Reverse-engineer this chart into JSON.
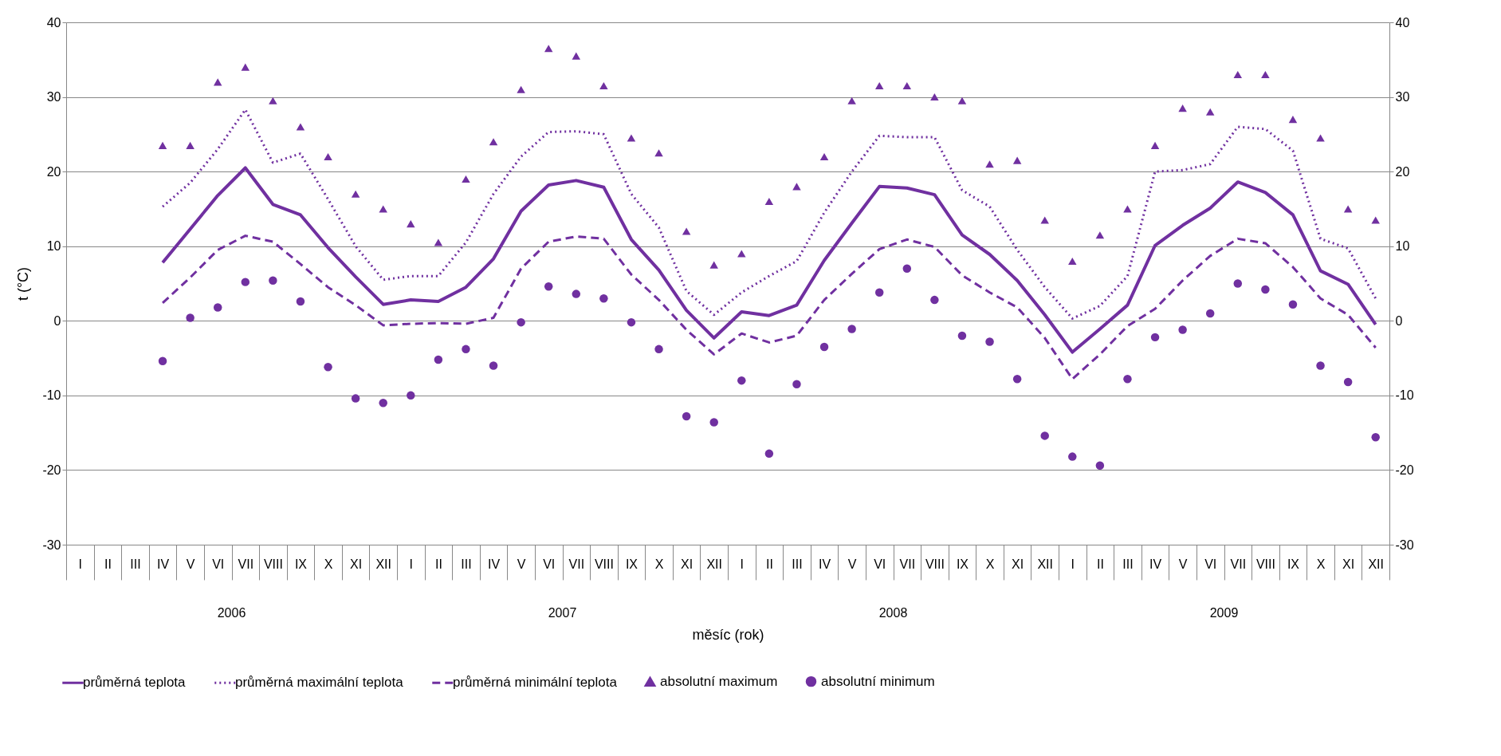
{
  "chart_data": {
    "type": "line",
    "xlabel": "měsíc (rok)",
    "ylabel": "t (°C)",
    "categories": [
      "I",
      "II",
      "III",
      "IV",
      "V",
      "VI",
      "VII",
      "VIII",
      "IX",
      "X",
      "XI",
      "XII",
      "I",
      "II",
      "III",
      "IV",
      "V",
      "VI",
      "VII",
      "VIII",
      "IX",
      "X",
      "XI",
      "XII",
      "I",
      "II",
      "III",
      "IV",
      "V",
      "VI",
      "VII",
      "VIII",
      "IX",
      "X",
      "XI",
      "XII",
      "I",
      "II",
      "III",
      "IV",
      "V",
      "VI",
      "VII",
      "VIII",
      "IX",
      "X",
      "XI",
      "XII"
    ],
    "annotations": [
      "2006",
      "2007",
      "2008",
      "2009"
    ],
    "ylim": [
      -30,
      40
    ],
    "yticks": [
      -30,
      -20,
      -10,
      0,
      10,
      20,
      30,
      40
    ],
    "y2lim": [
      -30,
      40
    ],
    "y2ticks": [
      -30,
      -20,
      -10,
      0,
      10,
      20,
      30,
      40
    ],
    "grid": "y",
    "legend": "bottom",
    "series": [
      {
        "name": "průměrná teplota",
        "type": "line",
        "line_style": "solid",
        "color": "#7030a0",
        "values": [
          null,
          null,
          null,
          7.8,
          12.3,
          16.8,
          20.5,
          15.6,
          14.2,
          9.8,
          5.9,
          2.2,
          2.8,
          2.6,
          4.5,
          8.3,
          14.7,
          18.2,
          18.8,
          17.9,
          10.9,
          6.8,
          1.4,
          -2.3,
          1.2,
          0.7,
          2.1,
          8.1,
          13.1,
          18.0,
          17.8,
          16.9,
          11.5,
          8.9,
          5.4,
          0.8,
          -4.2,
          -1.1,
          2.1,
          10.1,
          12.8,
          15.1,
          18.6,
          17.2,
          14.2,
          6.7,
          4.9,
          -0.5
        ]
      },
      {
        "name": "průměrná maximální teplota",
        "type": "line",
        "line_style": "dotted",
        "color": "#7030a0",
        "values": [
          null,
          null,
          null,
          15.3,
          18.5,
          23,
          28.3,
          21.2,
          22.4,
          16.3,
          10,
          5.5,
          6,
          6,
          10.5,
          17,
          22,
          25.3,
          25.4,
          25,
          17,
          12.5,
          4,
          0.8,
          3.8,
          6,
          8,
          14.5,
          20,
          24.8,
          24.6,
          24.6,
          17.5,
          15.3,
          9.5,
          4.5,
          0.3,
          2,
          6,
          20,
          20.2,
          21,
          26,
          25.7,
          22.8,
          11,
          9.7,
          3
        ]
      },
      {
        "name": "průměrná minimální teplota",
        "type": "line",
        "line_style": "dashed",
        "color": "#7030a0",
        "values": [
          null,
          null,
          null,
          2.4,
          5.8,
          9.5,
          11.4,
          10.6,
          7.6,
          4.5,
          2.1,
          -0.6,
          -0.4,
          -0.3,
          -0.4,
          0.4,
          7,
          10.6,
          11.3,
          11.0,
          6.2,
          2.8,
          -1.2,
          -4.5,
          -1.7,
          -2.9,
          -2.0,
          2.8,
          6.3,
          9.6,
          10.9,
          9.9,
          6.1,
          3.8,
          1.8,
          -2.3,
          -7.8,
          -4.5,
          -0.7,
          1.6,
          5.4,
          8.7,
          11.0,
          10.4,
          7.2,
          3.0,
          0.8,
          -3.6
        ]
      },
      {
        "name": "absolutní maximum",
        "type": "scatter",
        "marker": "triangle",
        "color": "#7030a0",
        "values": [
          null,
          null,
          null,
          23.5,
          23.5,
          32,
          34,
          29.5,
          26,
          22,
          17,
          15,
          13,
          10.5,
          19,
          24,
          31,
          36.5,
          35.5,
          31.5,
          24.5,
          22.5,
          12,
          7.5,
          9,
          16,
          18,
          22,
          29.5,
          31.5,
          31.5,
          30,
          29.5,
          21,
          21.5,
          13.5,
          8,
          11.5,
          15,
          23.5,
          28.5,
          28,
          33,
          33,
          27,
          24.5,
          15,
          13.5
        ]
      },
      {
        "name": "absolutní minimum",
        "type": "scatter",
        "marker": "circle",
        "color": "#7030a0",
        "values": [
          null,
          null,
          null,
          -5.4,
          0.4,
          1.8,
          5.2,
          5.4,
          2.6,
          -6.2,
          -10.4,
          -11,
          -10,
          -5.2,
          -3.8,
          -6,
          -0.2,
          4.6,
          3.6,
          3.0,
          -0.2,
          -3.8,
          -12.8,
          -13.6,
          -8,
          -17.8,
          -8.5,
          -3.5,
          -1.1,
          3.8,
          7.0,
          2.8,
          -2.0,
          -2.8,
          -7.8,
          -15.4,
          -18.2,
          -19.4,
          -7.8,
          -2.2,
          -1.2,
          1.0,
          5.0,
          4.2,
          2.2,
          -6.0,
          -8.2,
          -15.6
        ]
      }
    ]
  }
}
